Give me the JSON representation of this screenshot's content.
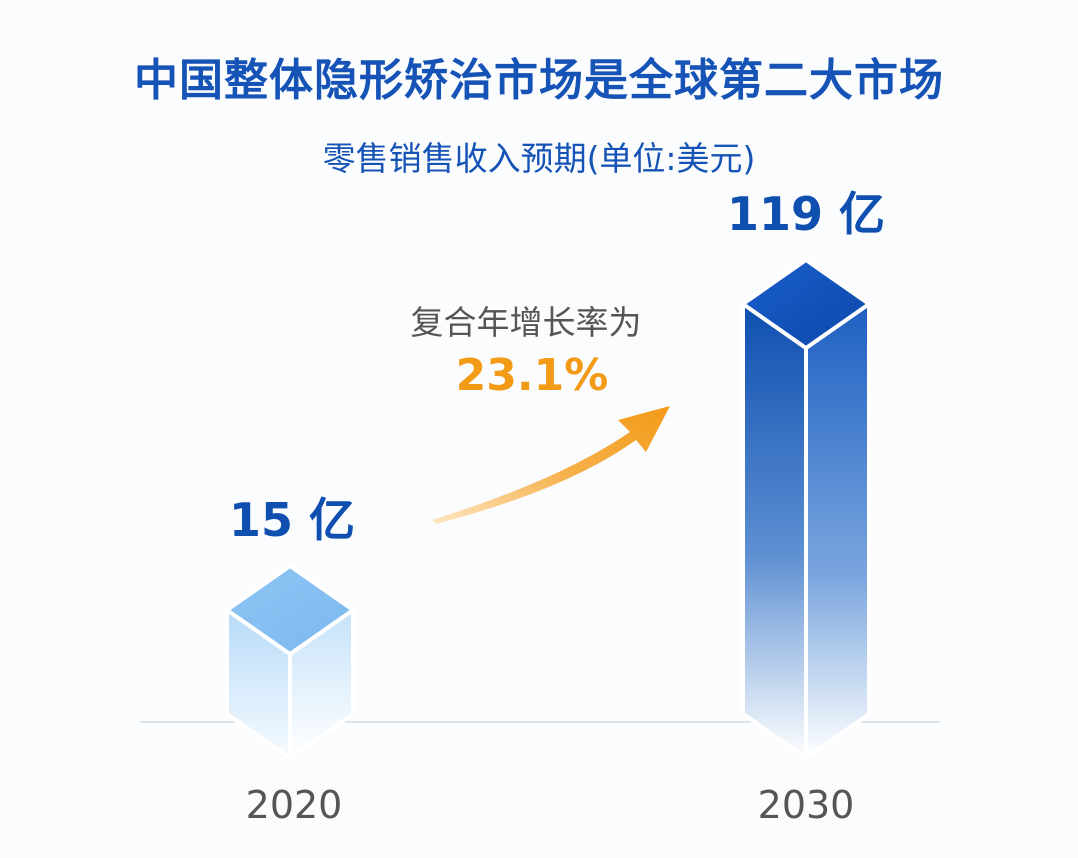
{
  "title": "中国整体隐形矫治市场是全球第二大市场",
  "subtitle": "零售销售收入预期(单位:美元)",
  "colors": {
    "title": "#1553b6",
    "bar_dark": "#0e4fb0",
    "bar_light": "#8ec4f2",
    "arrow": "#f39a16",
    "text_gray": "#555555"
  },
  "annotation": {
    "label": "复合年增长率为",
    "value": "23.1%"
  },
  "chart_data": {
    "type": "bar",
    "title": "中国整体隐形矫治市场是全球第二大市场",
    "subtitle": "零售销售收入预期(单位:美元)",
    "categories": [
      "2020",
      "2030"
    ],
    "values": [
      15,
      119
    ],
    "value_labels": [
      "15 亿",
      "119 亿"
    ],
    "unit": "亿",
    "annotations": [
      "复合年增长率为",
      "23.1%"
    ],
    "grid": false,
    "legend": "none"
  }
}
